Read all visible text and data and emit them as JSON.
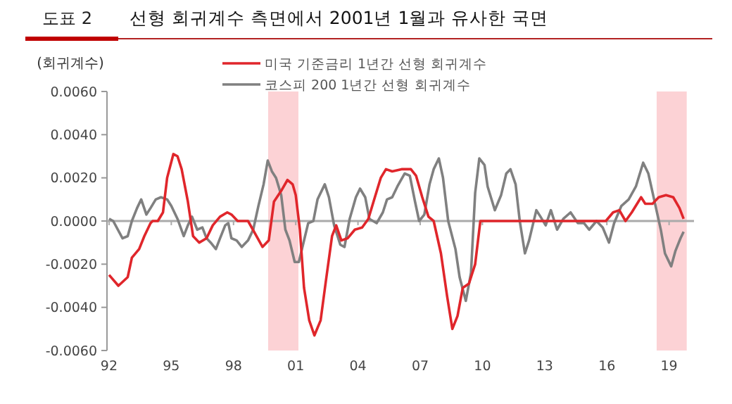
{
  "chart_data": {
    "type": "line",
    "title": "선형 회귀계수 측면에서 2001년 1월과 유사한 국면",
    "annotations": [
      "도표 2"
    ],
    "ylabel": "(회귀계수)",
    "legend": "top",
    "marker": "none",
    "line_style": "solid",
    "xlim": [
      1991.9,
      2020.2
    ],
    "xticks": [
      {
        "value": 1992,
        "label": "92"
      },
      {
        "value": 1995,
        "label": "95"
      },
      {
        "value": 1998,
        "label": "98"
      },
      {
        "value": 2001,
        "label": "01"
      },
      {
        "value": 2004,
        "label": "04"
      },
      {
        "value": 2007,
        "label": "07"
      },
      {
        "value": 2010,
        "label": "10"
      },
      {
        "value": 2013,
        "label": "13"
      },
      {
        "value": 2016,
        "label": "16"
      },
      {
        "value": 2019,
        "label": "19"
      }
    ],
    "ylim": [
      -0.006,
      0.006
    ],
    "yticks": [
      {
        "value": -0.006,
        "label": "-0.0060"
      },
      {
        "value": -0.004,
        "label": "-0.0040"
      },
      {
        "value": -0.002,
        "label": "-0.0020"
      },
      {
        "value": 0,
        "label": "0.0000"
      },
      {
        "value": 0.002,
        "label": "0.0020"
      },
      {
        "value": 0.004,
        "label": "0.0040"
      },
      {
        "value": 0.006,
        "label": "0.0060"
      }
    ],
    "bands": [
      {
        "axis": "x",
        "from": 1999.67,
        "to": 2001.13,
        "color": "#fcd2d5"
      },
      {
        "axis": "x",
        "from": 2018.4,
        "to": 2019.85,
        "color": "#fcd2d5"
      }
    ],
    "series": [
      {
        "name": "코스피 200 1년간 선형 회귀계수",
        "color": "#808080",
        "x": [
          1992,
          1992.2,
          1992.65,
          1992.9,
          1993.1,
          1993.35,
          1993.55,
          1993.8,
          1994,
          1994.25,
          1994.5,
          1994.8,
          1995,
          1995.3,
          1995.6,
          1995.8,
          1996,
          1996.25,
          1996.5,
          1996.7,
          1996.9,
          1997.15,
          1997.35,
          1997.6,
          1997.75,
          1997.9,
          1998.15,
          1998.4,
          1998.7,
          1998.95,
          1999.2,
          1999.45,
          1999.65,
          1999.85,
          2000.05,
          2000.3,
          2000.5,
          2000.7,
          2000.95,
          2001.15,
          2001.35,
          2001.6,
          2001.85,
          2002.05,
          2002.4,
          2002.6,
          2002.85,
          2003.15,
          2003.35,
          2003.6,
          2003.9,
          2004.1,
          2004.35,
          2004.55,
          2004.9,
          2005.2,
          2005.4,
          2005.65,
          2005.9,
          2006.25,
          2006.5,
          2006.75,
          2006.95,
          2007.2,
          2007.45,
          2007.65,
          2007.9,
          2008.1,
          2008.35,
          2008.7,
          2008.9,
          2009.2,
          2009.45,
          2009.65,
          2009.85,
          2010.1,
          2010.25,
          2010.6,
          2010.9,
          2011.15,
          2011.35,
          2011.6,
          2011.8,
          2012.05,
          2012.25,
          2012.6,
          2012.8,
          2013.05,
          2013.3,
          2013.6,
          2013.9,
          2014.25,
          2014.6,
          2014.9,
          2015.15,
          2015.5,
          2015.8,
          2016.1,
          2016.35,
          2016.7,
          2017.05,
          2017.4,
          2017.75,
          2018,
          2018.3,
          2018.6,
          2018.8,
          2019.1,
          2019.3,
          2019.55,
          2019.7
        ],
        "values": [
          0.0001,
          0,
          -0.0008,
          -0.0007,
          0,
          0.0006,
          0.001,
          0.0003,
          0.0006,
          0.001,
          0.0011,
          0.001,
          0.0007,
          0.0001,
          -0.0007,
          -0.0002,
          0.0002,
          -0.0004,
          -0.0003,
          -0.0008,
          -0.001,
          -0.0013,
          -0.0008,
          -0.0002,
          -0.0001,
          -0.0008,
          -0.0009,
          -0.0012,
          -0.0009,
          -0.0004,
          0.0007,
          0.0017,
          0.0028,
          0.0023,
          0.002,
          0.0012,
          -0.0004,
          -0.0009,
          -0.0019,
          -0.0019,
          -0.0011,
          -0.0001,
          0,
          0.001,
          0.0017,
          0.0011,
          -0.0002,
          -0.0011,
          -0.0012,
          0.0001,
          0.0011,
          0.0015,
          0.0011,
          0.0001,
          -0.0001,
          0.0004,
          0.001,
          0.0011,
          0.0016,
          0.0022,
          0.0021,
          0.0009,
          0,
          0.0003,
          0.0017,
          0.0024,
          0.0029,
          0.002,
          0,
          -0.0013,
          -0.0026,
          -0.0037,
          -0.0024,
          0.0013,
          0.0029,
          0.0026,
          0.0016,
          0.0005,
          0.0012,
          0.0022,
          0.0024,
          0.0017,
          0,
          -0.0015,
          -0.0009,
          0.0005,
          0.0002,
          -0.0002,
          0.0005,
          -0.0004,
          0.0001,
          0.0004,
          -0.0001,
          -0.0001,
          -0.0004,
          0,
          -0.0003,
          -0.001,
          -0.0001,
          0.0007,
          0.001,
          0.0016,
          0.0027,
          0.0022,
          0.0009,
          -0.0004,
          -0.0015,
          -0.0021,
          -0.0014,
          -0.0008,
          -0.0005
        ]
      },
      {
        "name": "미국 기준금리 1년간 선형 회귀계수",
        "color": "#e0262b",
        "x": [
          1992,
          1992.45,
          1992.9,
          1993.1,
          1993.45,
          1993.7,
          1994,
          1994.1,
          1994.35,
          1994.6,
          1994.8,
          1995.1,
          1995.3,
          1995.5,
          1995.8,
          1996.05,
          1996.35,
          1996.7,
          1997,
          1997.35,
          1997.7,
          1997.9,
          1998.2,
          1998.7,
          1999.05,
          1999.4,
          1999.7,
          1999.95,
          2000.3,
          2000.6,
          2000.85,
          2001,
          2001.2,
          2001.4,
          2001.65,
          2001.9,
          2002.2,
          2002.45,
          2002.75,
          2002.95,
          2003.2,
          2003.5,
          2003.85,
          2004.2,
          2004.5,
          2004.75,
          2005.1,
          2005.35,
          2005.65,
          2006.1,
          2006.55,
          2006.8,
          2007.1,
          2007.4,
          2007.65,
          2008,
          2008.3,
          2008.55,
          2008.8,
          2009.05,
          2009.35,
          2009.65,
          2009.9,
          2015.95,
          2016.3,
          2016.6,
          2016.9,
          2017.2,
          2017.65,
          2017.85,
          2018.2,
          2018.5,
          2018.85,
          2019.2,
          2019.5,
          2019.7
        ],
        "values": [
          -0.0025,
          -0.003,
          -0.0026,
          -0.0017,
          -0.0013,
          -0.0007,
          -0.0001,
          0,
          0,
          0.0004,
          0.002,
          0.0031,
          0.003,
          0.0024,
          0.0009,
          -0.0007,
          -0.001,
          -0.0008,
          -0.0002,
          0.0002,
          0.0004,
          0.0003,
          0,
          0,
          -0.0006,
          -0.0012,
          -0.0009,
          0.0009,
          0.0014,
          0.0019,
          0.0017,
          0.0012,
          -0.0004,
          -0.0031,
          -0.0046,
          -0.0053,
          -0.0046,
          -0.0028,
          -0.0007,
          -0.0002,
          -0.0009,
          -0.0008,
          -0.0004,
          -0.0003,
          0.0001,
          0.0009,
          0.002,
          0.0024,
          0.0023,
          0.0024,
          0.0024,
          0.0021,
          0.0011,
          0.0002,
          0,
          -0.0015,
          -0.0035,
          -0.005,
          -0.0044,
          -0.0031,
          -0.0029,
          -0.002,
          0,
          0,
          0.0004,
          0.0005,
          0,
          0.0004,
          0.0011,
          0.0008,
          0.0008,
          0.0011,
          0.0012,
          0.0011,
          0.0006,
          0.0001
        ]
      }
    ]
  }
}
